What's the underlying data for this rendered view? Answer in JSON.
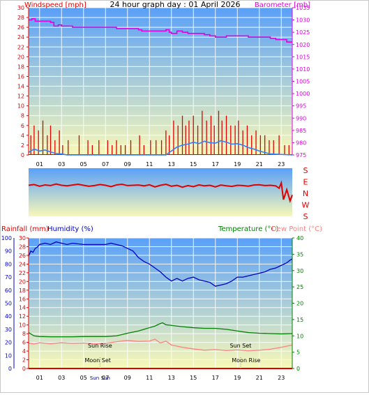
{
  "colors": {
    "windspeed": "#e00000",
    "gust": "#e00000",
    "avgwind": "#3080ff",
    "barometer": "#e000e0",
    "direction": "#e00000",
    "rain": "#e00000",
    "humidity": "#0000c0",
    "temperature": "#008000",
    "dewpoint": "#ff8080",
    "grid": "#ffffff",
    "bg_top": "#5aa0f8",
    "bg_bottom": "#f8f8b8"
  },
  "chart_data": [
    {
      "type": "line",
      "title": "24 hour graph day : 01 April 2026",
      "xlabel": "",
      "ylabel_left": "Windspeed [mph]",
      "ylabel_right": "Barometer [mb]",
      "x_ticks": [
        "01",
        "03",
        "05",
        "07",
        "09",
        "11",
        "13",
        "15",
        "17",
        "19",
        "21",
        "23"
      ],
      "y_left_ticks": [
        "0",
        "2",
        "4",
        "6",
        "8",
        "10",
        "12",
        "14",
        "16",
        "18",
        "20",
        "22",
        "24",
        "26",
        "28",
        "30"
      ],
      "y_left_range": [
        0,
        30
      ],
      "y_right_ticks": [
        "975",
        "980",
        "985",
        "990",
        "995",
        "1000",
        "1005",
        "1010",
        "1015",
        "1020",
        "1025",
        "1030",
        "1035"
      ],
      "y_right_range": [
        975,
        1035
      ],
      "x_range": [
        0,
        24
      ],
      "grid": true,
      "series": [
        {
          "name": "Windspeed [mph]",
          "kind": "gust_spikes",
          "x": [
            0.2,
            0.5,
            0.9,
            1.3,
            1.7,
            2.0,
            2.4,
            2.8,
            3.1,
            3.6,
            4.6,
            5.4,
            5.8,
            6.4,
            7.2,
            7.6,
            8.0,
            8.4,
            8.8,
            9.3,
            10.1,
            10.5,
            11.1,
            11.6,
            12.1,
            12.5,
            12.8,
            13.2,
            13.6,
            14.0,
            14.3,
            14.6,
            15.0,
            15.4,
            15.8,
            16.2,
            16.6,
            16.9,
            17.3,
            17.6,
            18.0,
            18.4,
            18.8,
            19.1,
            19.5,
            19.9,
            20.3,
            20.7,
            21.1,
            21.5,
            21.9,
            22.3,
            22.8,
            23.3,
            23.7
          ],
          "values": [
            4,
            6,
            5,
            7,
            4,
            6,
            3,
            5,
            2,
            3,
            4,
            3,
            2,
            3,
            3,
            2,
            3,
            2,
            2,
            3,
            4,
            2,
            3,
            3,
            3,
            5,
            4,
            7,
            6,
            8,
            6,
            7,
            8,
            6,
            9,
            7,
            8,
            6,
            9,
            7,
            8,
            6,
            6,
            7,
            5,
            6,
            4,
            5,
            4,
            4,
            3,
            3,
            4,
            2,
            2
          ]
        },
        {
          "name": "Average windspeed",
          "kind": "line",
          "x": [
            0,
            0.5,
            1,
            1.5,
            2,
            2.5,
            3,
            3.5,
            4,
            12.5,
            13,
            13.5,
            14,
            14.5,
            15,
            15.5,
            16,
            16.5,
            17,
            17.5,
            18,
            18.5,
            19,
            19.5,
            20,
            20.5,
            21,
            21.5,
            22,
            24
          ],
          "values": [
            0.5,
            1.2,
            0.8,
            1.0,
            0.6,
            0.3,
            0.2,
            0,
            0,
            0,
            0.8,
            1.6,
            2.0,
            2.2,
            2.6,
            2.3,
            2.8,
            2.5,
            2.4,
            2.9,
            2.6,
            2.2,
            2.3,
            2.0,
            1.5,
            1.2,
            0.8,
            0.5,
            0.2,
            0
          ]
        },
        {
          "name": "Barometer [mb]",
          "kind": "step",
          "x": [
            0,
            0.3,
            0.6,
            1.0,
            2.0,
            2.3,
            2.7,
            3.0,
            3.3,
            4.0,
            6.0,
            8.0,
            8.5,
            10.0,
            10.3,
            11.5,
            12.5,
            12.8,
            13.0,
            13.5,
            14.0,
            14.5,
            16.0,
            16.5,
            17.0,
            18.0,
            19.0,
            20.0,
            21.0,
            22.0,
            22.5,
            23.5,
            24.0
          ],
          "values": [
            1030,
            1030.5,
            1029.5,
            1029.5,
            1029,
            1027.5,
            1028,
            1027.5,
            1027.5,
            1027,
            1027,
            1026.5,
            1026.5,
            1026,
            1025.5,
            1025.5,
            1026,
            1025,
            1024.5,
            1025.5,
            1025,
            1024.5,
            1024,
            1023.5,
            1023,
            1023.5,
            1023.5,
            1023,
            1023,
            1022.5,
            1022,
            1021,
            1021
          ]
        }
      ]
    },
    {
      "type": "line",
      "title": "",
      "direction_labels": [
        "S",
        "E",
        "N",
        "W",
        "S"
      ],
      "x_range": [
        0,
        24
      ],
      "series": [
        {
          "name": "Wind direction",
          "kind": "line",
          "x": [
            0,
            0.5,
            1,
            1.5,
            2,
            2.5,
            3,
            3.5,
            4,
            4.5,
            5,
            5.5,
            6,
            6.5,
            7,
            7.5,
            8,
            8.5,
            9,
            9.5,
            10,
            10.5,
            11,
            11.5,
            12,
            12.5,
            13,
            13.5,
            14,
            14.5,
            15,
            15.5,
            16,
            16.5,
            17,
            17.5,
            18,
            18.5,
            19,
            19.5,
            20,
            20.5,
            21,
            21.5,
            22,
            22.5,
            22.8,
            23.0,
            23.2,
            23.5,
            23.8,
            24
          ],
          "values": [
            128,
            122,
            135,
            125,
            130,
            118,
            128,
            132,
            126,
            120,
            128,
            135,
            130,
            122,
            128,
            138,
            125,
            120,
            130,
            128,
            126,
            132,
            124,
            140,
            128,
            120,
            135,
            128,
            142,
            130,
            138,
            125,
            132,
            128,
            140,
            126,
            132,
            136,
            128,
            130,
            134,
            126,
            124,
            130,
            128,
            132,
            150,
            110,
            235,
            160,
            245,
            200
          ]
        }
      ]
    },
    {
      "type": "line",
      "title": "",
      "ylabel_left_1": "Rainfall (mm)",
      "ylabel_left_2": "Humidity (%)",
      "ylabel_right_1": "Temperature (°C)",
      "ylabel_right_2": "Dew Point (°C)",
      "x_ticks": [
        "01",
        "03",
        "05",
        "07",
        "09",
        "11",
        "13",
        "15",
        "17",
        "19",
        "21",
        "23"
      ],
      "rain_ticks": [
        "0",
        "2",
        "4",
        "6",
        "8",
        "10",
        "12",
        "14",
        "16",
        "18",
        "20",
        "22",
        "24",
        "26",
        "28",
        "30"
      ],
      "rain_range": [
        0,
        30
      ],
      "humidity_ticks": [
        "0",
        "10",
        "20",
        "30",
        "40",
        "50",
        "60",
        "70",
        "80",
        "90",
        "100"
      ],
      "humidity_range": [
        0,
        100
      ],
      "temp_ticks": [
        "0",
        "5",
        "10",
        "15",
        "20",
        "25",
        "30",
        "35",
        "40"
      ],
      "temp_range": [
        0,
        40
      ],
      "x_range": [
        0,
        24
      ],
      "grid": true,
      "annotations": [
        {
          "text": "Sun Rise",
          "x": 6.5,
          "level": "upper"
        },
        {
          "text": "Sun Set",
          "x": 19.3,
          "level": "upper"
        },
        {
          "text": "Moon Set",
          "x": 6.3,
          "level": "lower"
        },
        {
          "text": "Moon Rise",
          "x": 19.8,
          "level": "lower"
        },
        {
          "text": "Sun",
          "x": 6.0,
          "level": "axis"
        },
        {
          "text": "Sun",
          "x": 7.0,
          "level": "axis"
        }
      ],
      "series": [
        {
          "name": "Humidity (%)",
          "x": [
            0,
            0.2,
            0.4,
            0.6,
            0.8,
            1.0,
            1.5,
            2.0,
            2.5,
            3.0,
            3.5,
            4.0,
            5.0,
            6.0,
            7.0,
            7.5,
            8.0,
            8.5,
            9.0,
            9.5,
            10.0,
            10.5,
            11.0,
            11.5,
            12.0,
            12.5,
            13.0,
            13.5,
            14.0,
            14.5,
            15.0,
            15.5,
            16.0,
            16.5,
            17.0,
            17.5,
            18.0,
            18.5,
            19.0,
            19.5,
            20.0,
            20.5,
            21.0,
            21.5,
            22.0,
            22.5,
            23.0,
            23.5,
            23.8,
            24.0
          ],
          "values": [
            86,
            90,
            89,
            92,
            93,
            95,
            96,
            95,
            97,
            96,
            95,
            96,
            95,
            95,
            95,
            96,
            95,
            94,
            92,
            90,
            85,
            82,
            80,
            77,
            74,
            70,
            67,
            69,
            67,
            69,
            70,
            68,
            67,
            66,
            63,
            64,
            65,
            67,
            70,
            70,
            71,
            72,
            73,
            74,
            76,
            77,
            79,
            81,
            83,
            84
          ]
        },
        {
          "name": "Temperature (°C)",
          "x": [
            0,
            0.5,
            1,
            2,
            3,
            4,
            5,
            6,
            7,
            8,
            9,
            10,
            10.5,
            11,
            11.5,
            12,
            12.2,
            12.5,
            13,
            13.5,
            14,
            15,
            16,
            17,
            18,
            19,
            20,
            21,
            22,
            23,
            24
          ],
          "values": [
            11,
            10,
            9.8,
            9.7,
            9.7,
            9.7,
            9.8,
            9.8,
            9.8,
            10.0,
            10.8,
            11.5,
            12.0,
            12.5,
            13.0,
            13.8,
            14.0,
            13.4,
            13.2,
            13.0,
            12.8,
            12.5,
            12.3,
            12.3,
            12.0,
            11.5,
            11.0,
            10.8,
            10.7,
            10.6,
            10.7
          ]
        },
        {
          "name": "Dew Point (°C)",
          "x": [
            0,
            0.5,
            1,
            2,
            3,
            4,
            5,
            6,
            7,
            8,
            9,
            10,
            11,
            11.5,
            12,
            12.5,
            13,
            14,
            15,
            16,
            17,
            18,
            19,
            20,
            21,
            22,
            23,
            24
          ],
          "values": [
            7.8,
            7.5,
            7.9,
            7.6,
            7.9,
            7.7,
            7.8,
            7.5,
            7.7,
            8.2,
            8.6,
            8.3,
            8.4,
            9.0,
            7.8,
            8.4,
            7.2,
            6.5,
            6.0,
            5.6,
            5.8,
            5.5,
            5.7,
            5.4,
            5.6,
            5.9,
            6.5,
            7.2
          ]
        },
        {
          "name": "Rainfall (mm)",
          "x": [
            0,
            24
          ],
          "values": [
            0,
            0
          ]
        }
      ]
    }
  ]
}
